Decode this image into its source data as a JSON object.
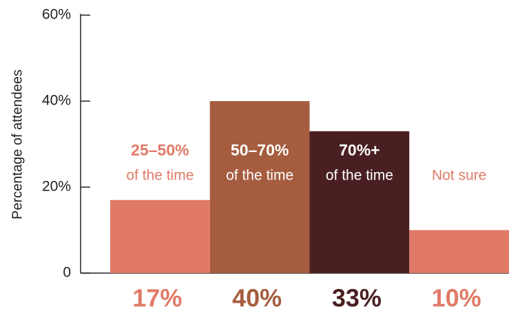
{
  "chart_data": {
    "type": "bar",
    "y_label": "Percentage of attendees",
    "categories": [
      [
        "25–50%",
        "of the time"
      ],
      [
        "50–70%",
        "of the time"
      ],
      [
        "70%+",
        "of the time"
      ],
      [
        "Not sure"
      ]
    ],
    "values": [
      17,
      40,
      33,
      10
    ],
    "value_labels": [
      "17%",
      "40%",
      "33%",
      "10%"
    ],
    "colors": [
      "#e07a67",
      "#a65d3f",
      "#4a1f21",
      "#e07a67"
    ],
    "ylim": [
      0,
      60
    ],
    "yticks": [
      0,
      {
        "value": 20,
        "label": "20%"
      },
      {
        "value": 40,
        "label": "40%"
      },
      {
        "value": 60,
        "label": "60%"
      }
    ]
  }
}
